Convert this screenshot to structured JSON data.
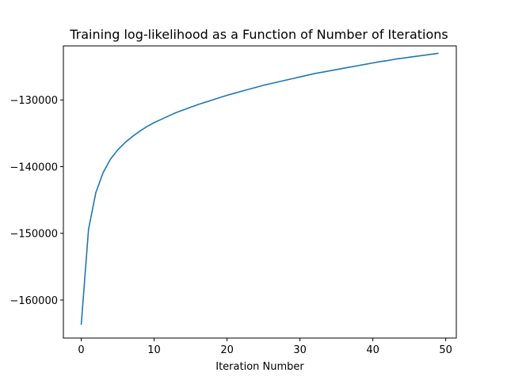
{
  "chart_data": {
    "type": "line",
    "title": "Training log-likelihood as a Function of Number of Iterations",
    "xlabel": "Iteration Number",
    "ylabel": "",
    "xlim": [
      -2.45,
      51.45
    ],
    "ylim": [
      -165700,
      -121900
    ],
    "xticks": [
      0,
      10,
      20,
      30,
      40,
      50
    ],
    "yticks": [
      -160000,
      -150000,
      -140000,
      -130000
    ],
    "ytick_labels": [
      "−160000",
      "−150000",
      "−140000",
      "−130000"
    ],
    "grid": false,
    "series": [
      {
        "color": "#1f77b4",
        "x": [
          0,
          1,
          2,
          3,
          4,
          5,
          6,
          7,
          8,
          9,
          10,
          11,
          12,
          13,
          14,
          15,
          16,
          17,
          18,
          19,
          20,
          21,
          22,
          23,
          24,
          25,
          26,
          27,
          28,
          29,
          30,
          31,
          32,
          33,
          34,
          35,
          36,
          37,
          38,
          39,
          40,
          41,
          42,
          43,
          44,
          45,
          46,
          47,
          48,
          49
        ],
        "y": [
          -163700,
          -149400,
          -143900,
          -140900,
          -138900,
          -137500,
          -136400,
          -135500,
          -134700,
          -134000,
          -133400,
          -132900,
          -132400,
          -131900,
          -131500,
          -131100,
          -130700,
          -130350,
          -130000,
          -129650,
          -129300,
          -129000,
          -128700,
          -128400,
          -128100,
          -127800,
          -127550,
          -127300,
          -127050,
          -126800,
          -126550,
          -126300,
          -126050,
          -125850,
          -125650,
          -125450,
          -125250,
          -125050,
          -124850,
          -124650,
          -124450,
          -124250,
          -124100,
          -123900,
          -123750,
          -123600,
          -123450,
          -123300,
          -123150,
          -123000
        ]
      }
    ]
  }
}
